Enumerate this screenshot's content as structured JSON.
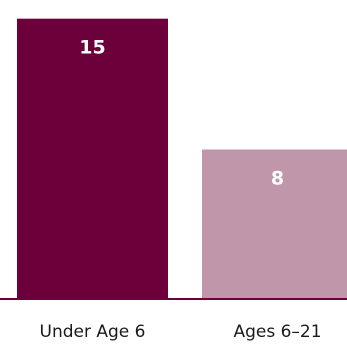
{
  "chart_data": {
    "type": "bar",
    "categories": [
      "Under Age 6",
      "Ages 6–21"
    ],
    "values": [
      15,
      8
    ],
    "data_labels": [
      "15",
      "8"
    ],
    "ylim": [
      0,
      16
    ],
    "grid": false,
    "legend": "none",
    "title": "",
    "xlabel": "",
    "ylabel": ""
  },
  "colors": {
    "bars": [
      "#6b003b",
      "#c096ab"
    ],
    "value_label": "#ffffff",
    "category_label": "#1a1a1a",
    "baseline": "#6b003b"
  }
}
